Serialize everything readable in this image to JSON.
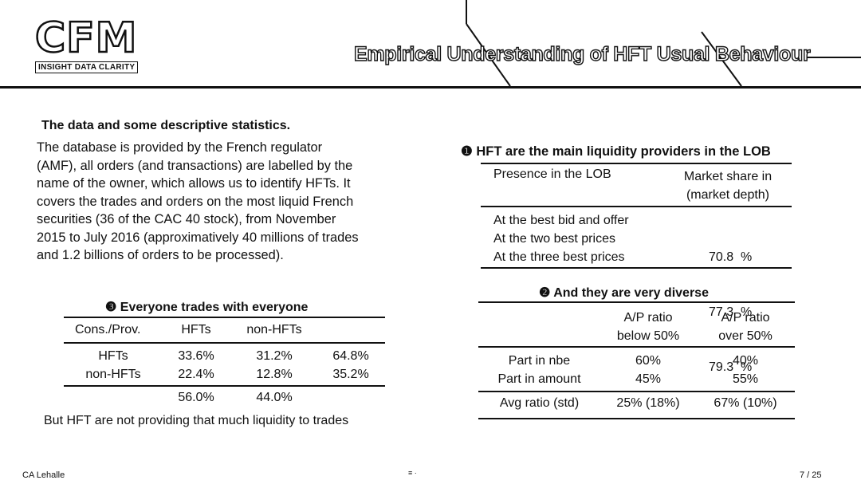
{
  "header": {
    "logo_text": "CFM",
    "logo_tagline": "INSIGHT DATA CLARITY",
    "title": "Empirical Understanding of HFT Usual Behaviour"
  },
  "intro": {
    "heading": "The data and some descriptive statistics.",
    "lines": [
      "The database is provided by the French regulator",
      "(AMF), all orders (and transactions) are labelled by the",
      "name of the owner, which allows us to identify HFTs. It",
      "covers the trades and orders on the most liquid French",
      "securities (36 of the CAC 40 stock), from November",
      "2015 to July 2016 (approximatively 40 millions of trades",
      "and 1.2 billions of orders to be processed)."
    ]
  },
  "table1": {
    "heading": "❶ HFT are the main liquidity providers in the LOB",
    "col1": "Presence in the LOB",
    "col2_line1": "Market share in",
    "col2_line2": "(market depth)",
    "rows": [
      {
        "label": "At the best bid and offer",
        "value": "70.8  %"
      },
      {
        "label": "At the two best prices",
        "value": "77.3  %"
      },
      {
        "label": "At the three best prices",
        "value": "79.3  %"
      }
    ]
  },
  "table2": {
    "heading": "❷ And they are very diverse",
    "col2_line1": "A/P ratio",
    "col2_line2": "below 50%",
    "col3_line1": "A/P ratio",
    "col3_line2": "over 50%",
    "rows": [
      {
        "label": "Part in nbe",
        "a": "60%",
        "b": "40%"
      },
      {
        "label": "Part in amount",
        "a": "45%",
        "b": "55%"
      }
    ],
    "avg": {
      "label": "Avg ratio (std)",
      "a": "25% (18%)",
      "b": "67% (10%)"
    }
  },
  "table3": {
    "heading": "❸ Everyone trades with everyone",
    "col1": "Cons./Prov.",
    "col2": "HFTs",
    "col3": "non-HFTs",
    "rows": [
      {
        "label": "HFTs",
        "a": "33.6%",
        "b": "31.2%",
        "total": "64.8%"
      },
      {
        "label": "non-HFTs",
        "a": "22.4%",
        "b": "12.8%",
        "total": "35.2%"
      }
    ],
    "totals": {
      "a": "56.0%",
      "b": "44.0%"
    },
    "note": "But HFT are not providing that much liquidity to trades"
  },
  "footer": {
    "author": "CA Lehalle",
    "page": "7 / 25"
  }
}
